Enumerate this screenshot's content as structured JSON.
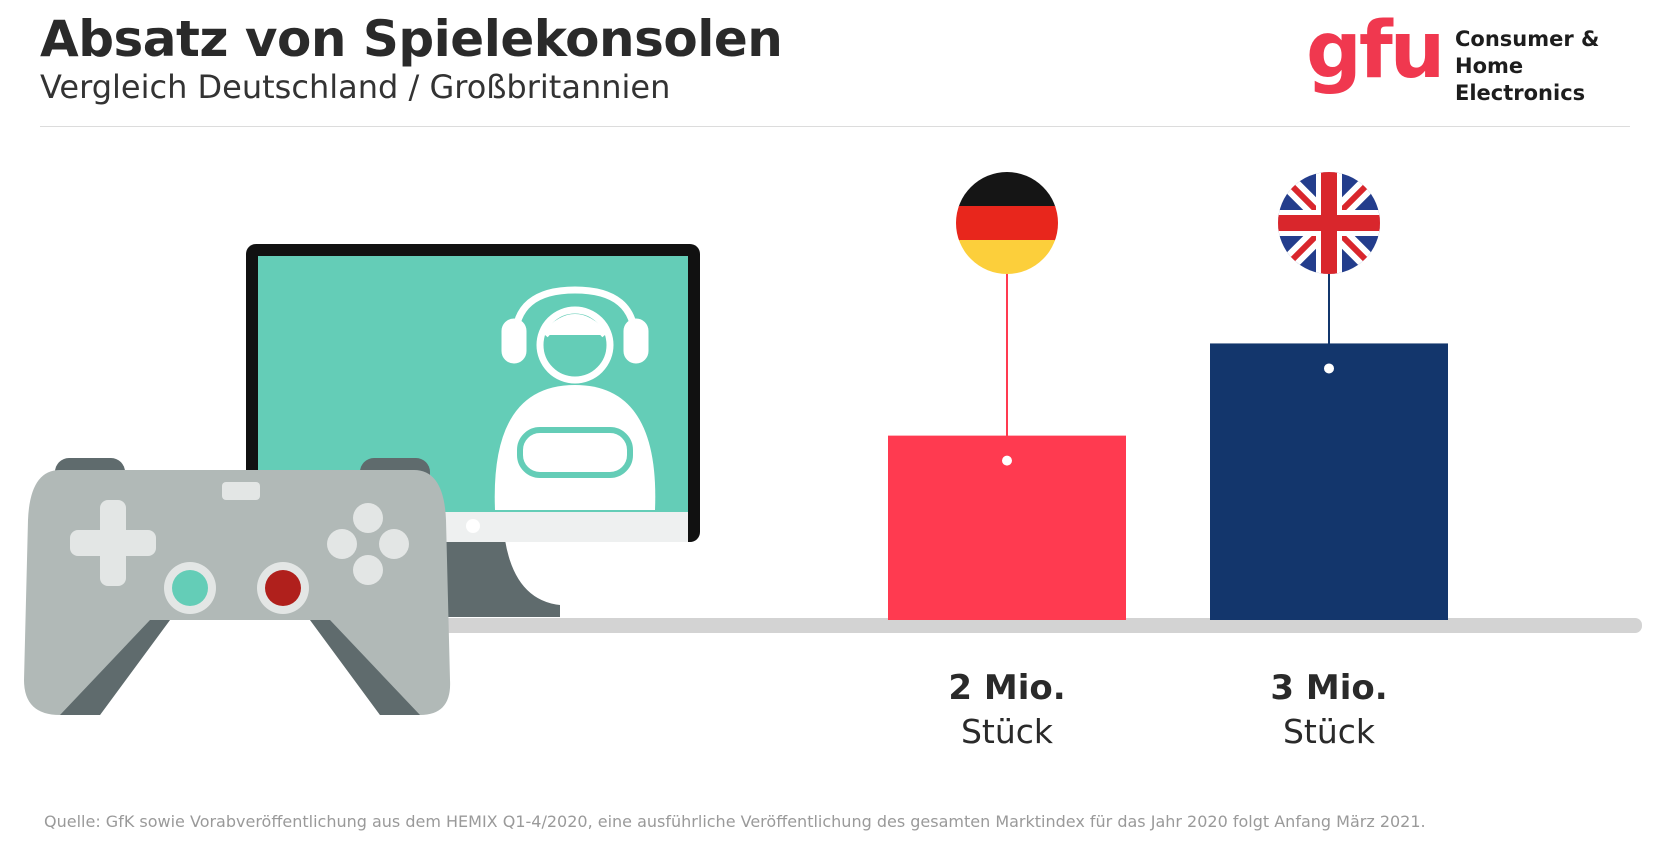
{
  "header": {
    "title": "Absatz von Spielekonsolen",
    "subtitle": "Vergleich Deutschland / Großbritannien"
  },
  "logo": {
    "wordmark": "gfu",
    "line1": "Consumer &",
    "line2": "Home Electronics"
  },
  "chart_data": {
    "type": "bar",
    "title": "Absatz von Spielekonsolen",
    "subtitle": "Vergleich Deutschland / Großbritannien",
    "categories": [
      "Deutschland",
      "Großbritannien"
    ],
    "values": [
      2,
      3
    ],
    "unit": "Mio. Stück",
    "labels": [
      {
        "value": "2 Mio.",
        "unit": "Stück"
      },
      {
        "value": "3 Mio.",
        "unit": "Stück"
      }
    ],
    "colors": [
      "#ff3a50",
      "#13366c"
    ],
    "ylim": [
      0,
      3.2
    ],
    "xlabel": "",
    "ylabel": ""
  },
  "footer": {
    "source": "Quelle: GfK sowie Vorabveröffentlichung aus dem HEMIX Q1-4/2020, eine ausführliche Veröffentlichung des gesamten Marktindex für das Jahr 2020 folgt Anfang März 2021."
  }
}
